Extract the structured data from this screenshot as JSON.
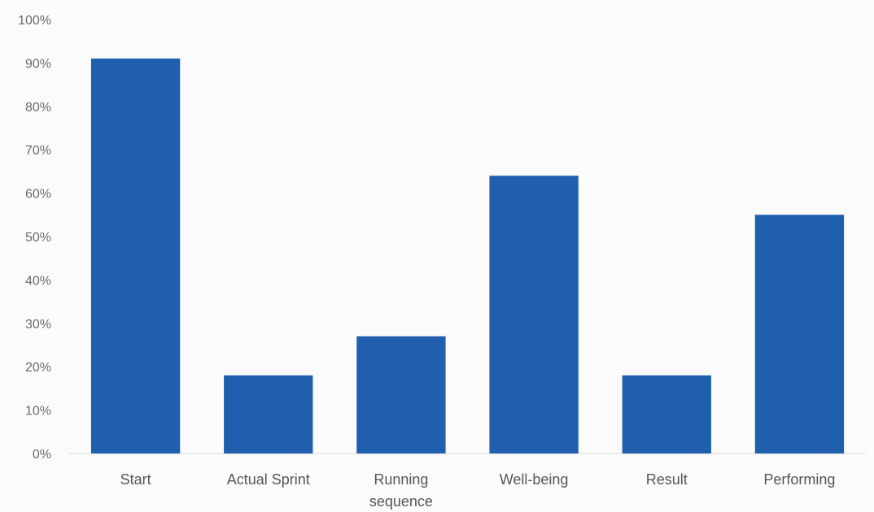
{
  "chart_data": {
    "type": "bar",
    "categories": [
      "Start",
      "Actual Sprint",
      "Running sequence",
      "Well-being",
      "Result",
      "Performing"
    ],
    "category_label_lines": [
      [
        "Start"
      ],
      [
        "Actual Sprint"
      ],
      [
        "Running",
        "sequence"
      ],
      [
        "Well-being"
      ],
      [
        "Result"
      ],
      [
        "Performing"
      ]
    ],
    "values": [
      91,
      18,
      27,
      64,
      18,
      55
    ],
    "ylim": [
      0,
      100
    ],
    "yticks": [
      0,
      10,
      20,
      30,
      40,
      50,
      60,
      70,
      80,
      90,
      100
    ],
    "ytick_labels": [
      "0%",
      "10%",
      "20%",
      "30%",
      "40%",
      "50%",
      "60%",
      "70%",
      "80%",
      "90%",
      "100%"
    ],
    "title": "",
    "xlabel": "",
    "ylabel": "",
    "grid": false,
    "legend": "none",
    "bar_color": "#1f5fae"
  }
}
